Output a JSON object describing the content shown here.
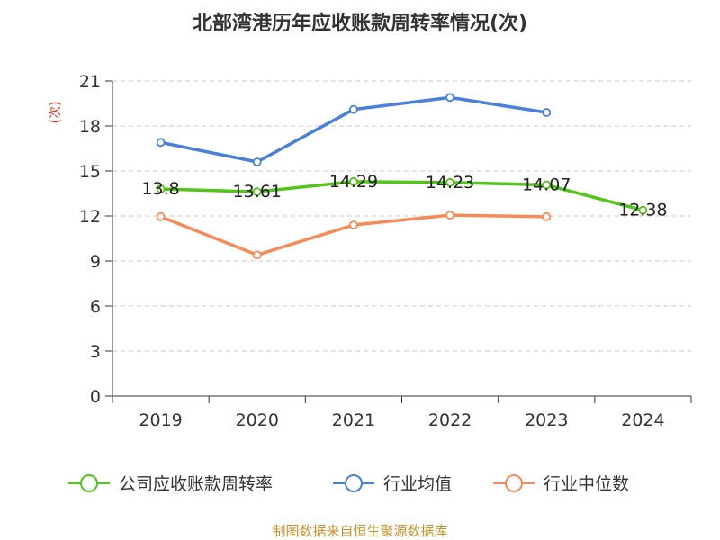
{
  "chart_data": {
    "type": "line",
    "title": "北部湾港历年应收账款周转率情况(次)",
    "ylabel": "(次)",
    "categories": [
      "2019",
      "2020",
      "2021",
      "2022",
      "2023",
      "2024"
    ],
    "ylim": [
      0,
      21
    ],
    "yticks": [
      0,
      3,
      6,
      9,
      12,
      15,
      18,
      21
    ],
    "grid": true,
    "legend_position": "bottom",
    "series": [
      {
        "name": "公司应收账款周转率",
        "color": "#52c41a",
        "values": [
          13.8,
          13.61,
          14.29,
          14.23,
          14.07,
          12.38
        ],
        "labels": [
          "13.8",
          "13.61",
          "14.29",
          "14.23",
          "14.07",
          "12.38"
        ]
      },
      {
        "name": "行业均值",
        "color": "#4a7fdb",
        "values": [
          16.9,
          15.6,
          19.1,
          19.9,
          18.9,
          null
        ]
      },
      {
        "name": "行业中位数",
        "color": "#f68b5a",
        "values": [
          11.95,
          9.4,
          11.4,
          12.05,
          11.95,
          null
        ]
      }
    ],
    "source": "制图数据来自恒生聚源数据库"
  }
}
